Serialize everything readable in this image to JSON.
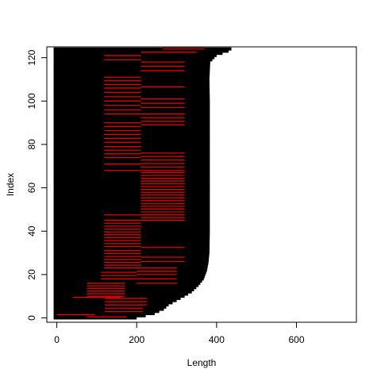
{
  "chart_data": {
    "type": "bar",
    "orientation": "horizontal",
    "title": "",
    "xlabel": "Length",
    "ylabel": "Index",
    "xlim": [
      -25,
      750
    ],
    "ylim": [
      -2,
      125
    ],
    "xticks": [
      0,
      200,
      400,
      600
    ],
    "xtick_labels": [
      "0",
      "200",
      "400",
      "600"
    ],
    "yticks": [
      0,
      20,
      40,
      60,
      80,
      100,
      120
    ],
    "ytick_labels": [
      "0",
      "20",
      "40",
      "60",
      "80",
      "100",
      "120"
    ],
    "grid": false,
    "legend": "none",
    "bar_color": "#000000",
    "segment_color": "#e00000",
    "length_profile": [
      [
        0,
        200
      ],
      [
        2,
        245
      ],
      [
        4,
        268
      ],
      [
        6,
        280
      ],
      [
        8,
        300
      ],
      [
        10,
        320
      ],
      [
        12,
        338
      ],
      [
        15,
        355
      ],
      [
        18,
        368
      ],
      [
        22,
        376
      ],
      [
        26,
        380
      ],
      [
        30,
        382
      ],
      [
        40,
        383
      ],
      [
        50,
        383
      ],
      [
        60,
        383
      ],
      [
        80,
        383
      ],
      [
        100,
        383
      ],
      [
        110,
        382
      ],
      [
        118,
        384
      ],
      [
        121,
        400
      ],
      [
        123,
        430
      ],
      [
        124,
        437
      ]
    ],
    "red_bands": [
      {
        "x": [
          118,
          210
        ],
        "y": [
          119,
          121
        ],
        "rows": 2
      },
      {
        "x": [
          118,
          210
        ],
        "y": [
          106,
          111
        ],
        "rows": 4
      },
      {
        "x": [
          118,
          210
        ],
        "y": [
          100,
          104
        ],
        "rows": 3
      },
      {
        "x": [
          118,
          210
        ],
        "y": [
          94,
          98
        ],
        "rows": 3
      },
      {
        "x": [
          118,
          210
        ],
        "y": [
          81,
          90
        ],
        "rows": 6
      },
      {
        "x": [
          118,
          210
        ],
        "y": [
          74,
          79
        ],
        "rows": 4
      },
      {
        "x": [
          118,
          210
        ],
        "y": [
          68,
          71
        ],
        "rows": 2
      },
      {
        "x": [
          118,
          210
        ],
        "y": [
          47,
          48
        ],
        "rows": 1
      },
      {
        "x": [
          118,
          210
        ],
        "y": [
          33,
          45
        ],
        "rows": 10
      },
      {
        "x": [
          118,
          210
        ],
        "y": [
          23,
          31
        ],
        "rows": 7
      },
      {
        "x": [
          110,
          200
        ],
        "y": [
          18,
          21
        ],
        "rows": 3
      },
      {
        "x": [
          75,
          170
        ],
        "y": [
          10,
          16
        ],
        "rows": 6
      },
      {
        "x": [
          40,
          160
        ],
        "y": [
          9,
          10
        ],
        "rows": 1
      },
      {
        "x": [
          120,
          225
        ],
        "y": [
          6,
          9
        ],
        "rows": 3
      },
      {
        "x": [
          120,
          215
        ],
        "y": [
          3,
          6
        ],
        "rows": 3
      },
      {
        "x": [
          0,
          95
        ],
        "y": [
          1,
          2
        ],
        "rows": 1
      },
      {
        "x": [
          75,
          175
        ],
        "y": [
          0,
          1
        ],
        "rows": 1
      },
      {
        "x": [
          210,
          320
        ],
        "y": [
          114,
          118
        ],
        "rows": 3
      },
      {
        "x": [
          210,
          320
        ],
        "y": [
          106,
          107
        ],
        "rows": 1
      },
      {
        "x": [
          210,
          320
        ],
        "y": [
          97,
          101
        ],
        "rows": 3
      },
      {
        "x": [
          210,
          320
        ],
        "y": [
          89,
          94
        ],
        "rows": 4
      },
      {
        "x": [
          210,
          320
        ],
        "y": [
          68,
          76
        ],
        "rows": 6
      },
      {
        "x": [
          210,
          320
        ],
        "y": [
          45,
          67
        ],
        "rows": 18
      },
      {
        "x": [
          210,
          320
        ],
        "y": [
          32,
          33
        ],
        "rows": 1
      },
      {
        "x": [
          210,
          320
        ],
        "y": [
          26,
          28
        ],
        "rows": 2
      },
      {
        "x": [
          200,
          300
        ],
        "y": [
          20,
          23
        ],
        "rows": 3
      },
      {
        "x": [
          200,
          300
        ],
        "y": [
          16,
          18
        ],
        "rows": 2
      },
      {
        "x": [
          210,
          350
        ],
        "y": [
          122,
          123
        ],
        "rows": 1
      },
      {
        "x": [
          265,
          370
        ],
        "y": [
          124,
          125
        ],
        "rows": 2
      }
    ]
  }
}
